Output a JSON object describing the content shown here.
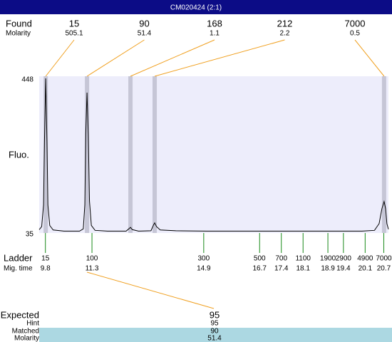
{
  "header": {
    "title": "CM020424 (2:1)"
  },
  "found": {
    "label": "Found",
    "sublabel": "Molarity",
    "sizes": [
      15,
      90,
      168,
      212,
      7000
    ],
    "molarities": [
      505.1,
      51.4,
      1.1,
      2.2,
      0.5
    ],
    "peak_times": [
      9.81,
      11.14,
      12.54,
      13.32,
      20.71
    ]
  },
  "chart_data": {
    "type": "line",
    "y_label": "Fluo.",
    "color": "#000000",
    "x": [
      9.6,
      9.68,
      9.74,
      9.77,
      9.81,
      9.85,
      9.88,
      9.94,
      10.05,
      10.4,
      10.9,
      11.02,
      11.07,
      11.1,
      11.14,
      11.18,
      11.22,
      11.28,
      11.4,
      11.8,
      12.4,
      12.5,
      12.54,
      12.6,
      12.8,
      13.2,
      13.28,
      13.32,
      13.38,
      13.5,
      14,
      15,
      16,
      17,
      18,
      19,
      20,
      20.4,
      20.55,
      20.64,
      20.71,
      20.76,
      20.8,
      20.85
    ],
    "values": [
      44,
      52,
      110,
      280,
      448,
      280,
      110,
      55,
      43,
      40,
      40,
      46,
      110,
      300,
      410,
      300,
      120,
      55,
      42,
      40,
      40,
      47,
      50,
      44,
      40,
      41,
      56,
      62,
      52,
      43,
      41,
      40,
      40,
      40,
      40,
      40,
      40,
      42,
      60,
      100,
      119,
      100,
      60,
      45
    ],
    "xlim": [
      9.6,
      20.85
    ],
    "ylim": [
      35,
      448
    ],
    "yticks": [
      35,
      448
    ]
  },
  "ladder": {
    "label": "Ladder",
    "sublabel": "Mig. time",
    "sizes": [
      15,
      100,
      300,
      500,
      700,
      1100,
      1900,
      2900,
      4900,
      7000
    ],
    "times": [
      9.8,
      11.3,
      14.9,
      16.7,
      17.4,
      18.1,
      18.9,
      19.4,
      20.1,
      20.7
    ]
  },
  "expected": {
    "labels": [
      "Expected",
      "Hint",
      "Matched",
      "Molarity"
    ],
    "values": [
      95,
      95,
      90,
      51.4
    ]
  }
}
